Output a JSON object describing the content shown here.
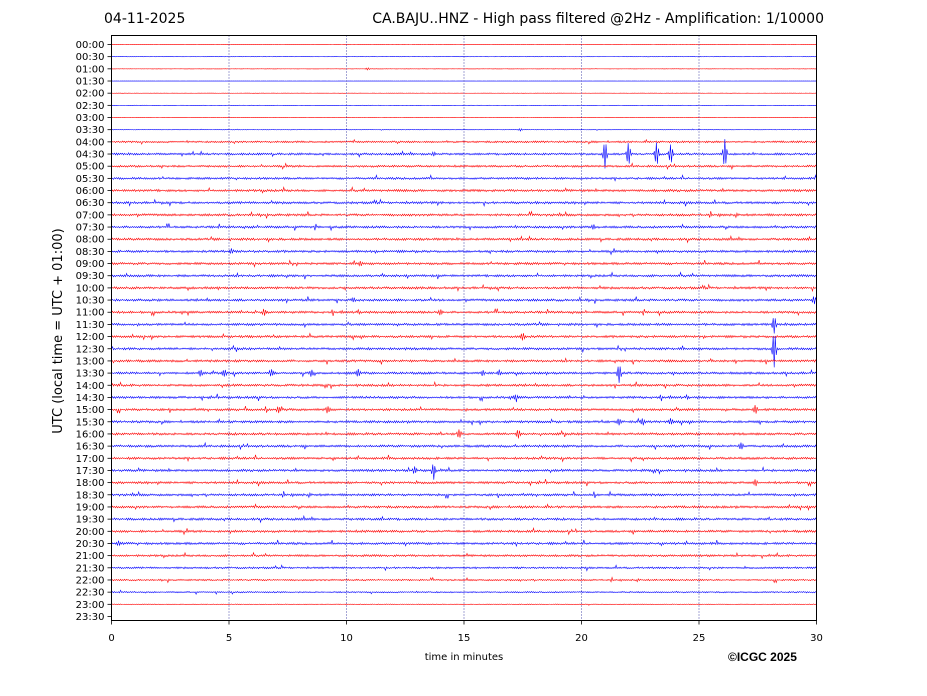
{
  "header": {
    "date": "04-11-2025",
    "title": "CA.BAJU..HNZ - High pass filtered @2Hz - Amplification: 1/10000"
  },
  "copyright": "©ICGC 2025",
  "colors": {
    "red": "#ff0000",
    "blue": "#0000ff",
    "grid": "#00008b",
    "frame": "#000000"
  },
  "chart_data": {
    "type": "line",
    "chart_kind": "helicorder",
    "xlabel": "time in minutes",
    "ylabel": "UTC (local time = UTC + 01:00)",
    "xlim": [
      0,
      30
    ],
    "xticks": [
      0,
      5,
      10,
      15,
      20,
      25,
      30
    ],
    "vertical_grid": "dotted at every 5 minutes",
    "rows": [
      "00:00",
      "00:30",
      "01:00",
      "01:30",
      "02:00",
      "02:30",
      "03:00",
      "03:30",
      "04:00",
      "04:30",
      "05:00",
      "05:30",
      "06:00",
      "06:30",
      "07:00",
      "07:30",
      "08:00",
      "08:30",
      "09:00",
      "09:30",
      "10:00",
      "10:30",
      "11:00",
      "11:30",
      "12:00",
      "12:30",
      "13:00",
      "13:30",
      "14:00",
      "14:30",
      "15:00",
      "15:30",
      "16:00",
      "16:30",
      "17:00",
      "17:30",
      "18:00",
      "18:30",
      "19:00",
      "19:30",
      "20:00",
      "20:30",
      "21:00",
      "21:30",
      "22:00",
      "22:30",
      "23:00",
      "23:30"
    ],
    "row_colors": "alternating red and blue (hour rows red, half-hour rows blue)",
    "data_end": "trace ends around 23:30 row start",
    "noise_level_by_row": [
      0.1,
      0.1,
      0.1,
      0.1,
      0.1,
      0.1,
      0.1,
      0.2,
      0.8,
      0.9,
      0.9,
      0.9,
      1.0,
      1.0,
      1.0,
      1.0,
      1.0,
      1.0,
      1.0,
      1.0,
      1.0,
      1.0,
      1.0,
      1.0,
      1.0,
      1.0,
      1.0,
      1.0,
      1.0,
      1.0,
      1.0,
      1.0,
      1.0,
      1.0,
      1.0,
      1.0,
      1.0,
      1.0,
      1.0,
      1.0,
      1.0,
      1.0,
      0.9,
      0.8,
      0.7,
      0.6,
      0.3,
      0.0
    ],
    "events": [
      {
        "row": "01:00",
        "minute": 10.9,
        "amp": 0.3
      },
      {
        "row": "03:30",
        "minute": 17.4,
        "amp": 0.3
      },
      {
        "row": "04:30",
        "minute": 13.7,
        "amp": 0.5
      },
      {
        "row": "04:30",
        "minute": 21.0,
        "amp": 3.5
      },
      {
        "row": "04:30",
        "minute": 22.0,
        "amp": 3.0
      },
      {
        "row": "04:30",
        "minute": 23.2,
        "amp": 3.0
      },
      {
        "row": "04:30",
        "minute": 23.8,
        "amp": 2.5
      },
      {
        "row": "04:30",
        "minute": 26.1,
        "amp": 3.5
      },
      {
        "row": "07:30",
        "minute": 20.5,
        "amp": 0.6
      },
      {
        "row": "08:30",
        "minute": 5.1,
        "amp": 0.6
      },
      {
        "row": "09:00",
        "minute": 10.6,
        "amp": 0.6
      },
      {
        "row": "10:30",
        "minute": 10.3,
        "amp": 0.5
      },
      {
        "row": "10:30",
        "minute": 29.9,
        "amp": 1.0
      },
      {
        "row": "11:00",
        "minute": 6.5,
        "amp": 0.8
      },
      {
        "row": "11:00",
        "minute": 14.0,
        "amp": 0.6
      },
      {
        "row": "11:30",
        "minute": 28.2,
        "amp": 2.0
      },
      {
        "row": "12:00",
        "minute": 17.5,
        "amp": 1.0
      },
      {
        "row": "12:30",
        "minute": 28.2,
        "amp": 4.5
      },
      {
        "row": "13:30",
        "minute": 21.6,
        "amp": 2.2
      },
      {
        "row": "14:30",
        "minute": 17.2,
        "amp": 0.6
      },
      {
        "row": "15:00",
        "minute": 7.1,
        "amp": 0.8
      },
      {
        "row": "15:00",
        "minute": 9.2,
        "amp": 0.8
      },
      {
        "row": "15:00",
        "minute": 27.4,
        "amp": 1.0
      },
      {
        "row": "15:30",
        "minute": 21.6,
        "amp": 0.8
      },
      {
        "row": "15:30",
        "minute": 22.6,
        "amp": 0.8
      },
      {
        "row": "15:30",
        "minute": 23.8,
        "amp": 0.7
      },
      {
        "row": "16:00",
        "minute": 14.8,
        "amp": 1.0
      },
      {
        "row": "16:00",
        "minute": 17.3,
        "amp": 1.0
      },
      {
        "row": "16:30",
        "minute": 26.8,
        "amp": 0.8
      },
      {
        "row": "17:30",
        "minute": 13.7,
        "amp": 1.8
      },
      {
        "row": "17:30",
        "minute": 12.9,
        "amp": 0.8
      },
      {
        "row": "18:00",
        "minute": 27.4,
        "amp": 0.8
      },
      {
        "row": "20:30",
        "minute": 0.3,
        "amp": 0.5
      },
      {
        "row": "13:30",
        "minute": 3.8,
        "amp": 0.8
      },
      {
        "row": "13:30",
        "minute": 4.8,
        "amp": 0.8
      },
      {
        "row": "13:30",
        "minute": 6.8,
        "amp": 0.8
      },
      {
        "row": "13:30",
        "minute": 8.5,
        "amp": 0.8
      },
      {
        "row": "13:30",
        "minute": 10.5,
        "amp": 0.8
      },
      {
        "row": "13:30",
        "minute": 15.8,
        "amp": 0.6
      },
      {
        "row": "13:30",
        "minute": 16.5,
        "amp": 0.6
      }
    ]
  }
}
